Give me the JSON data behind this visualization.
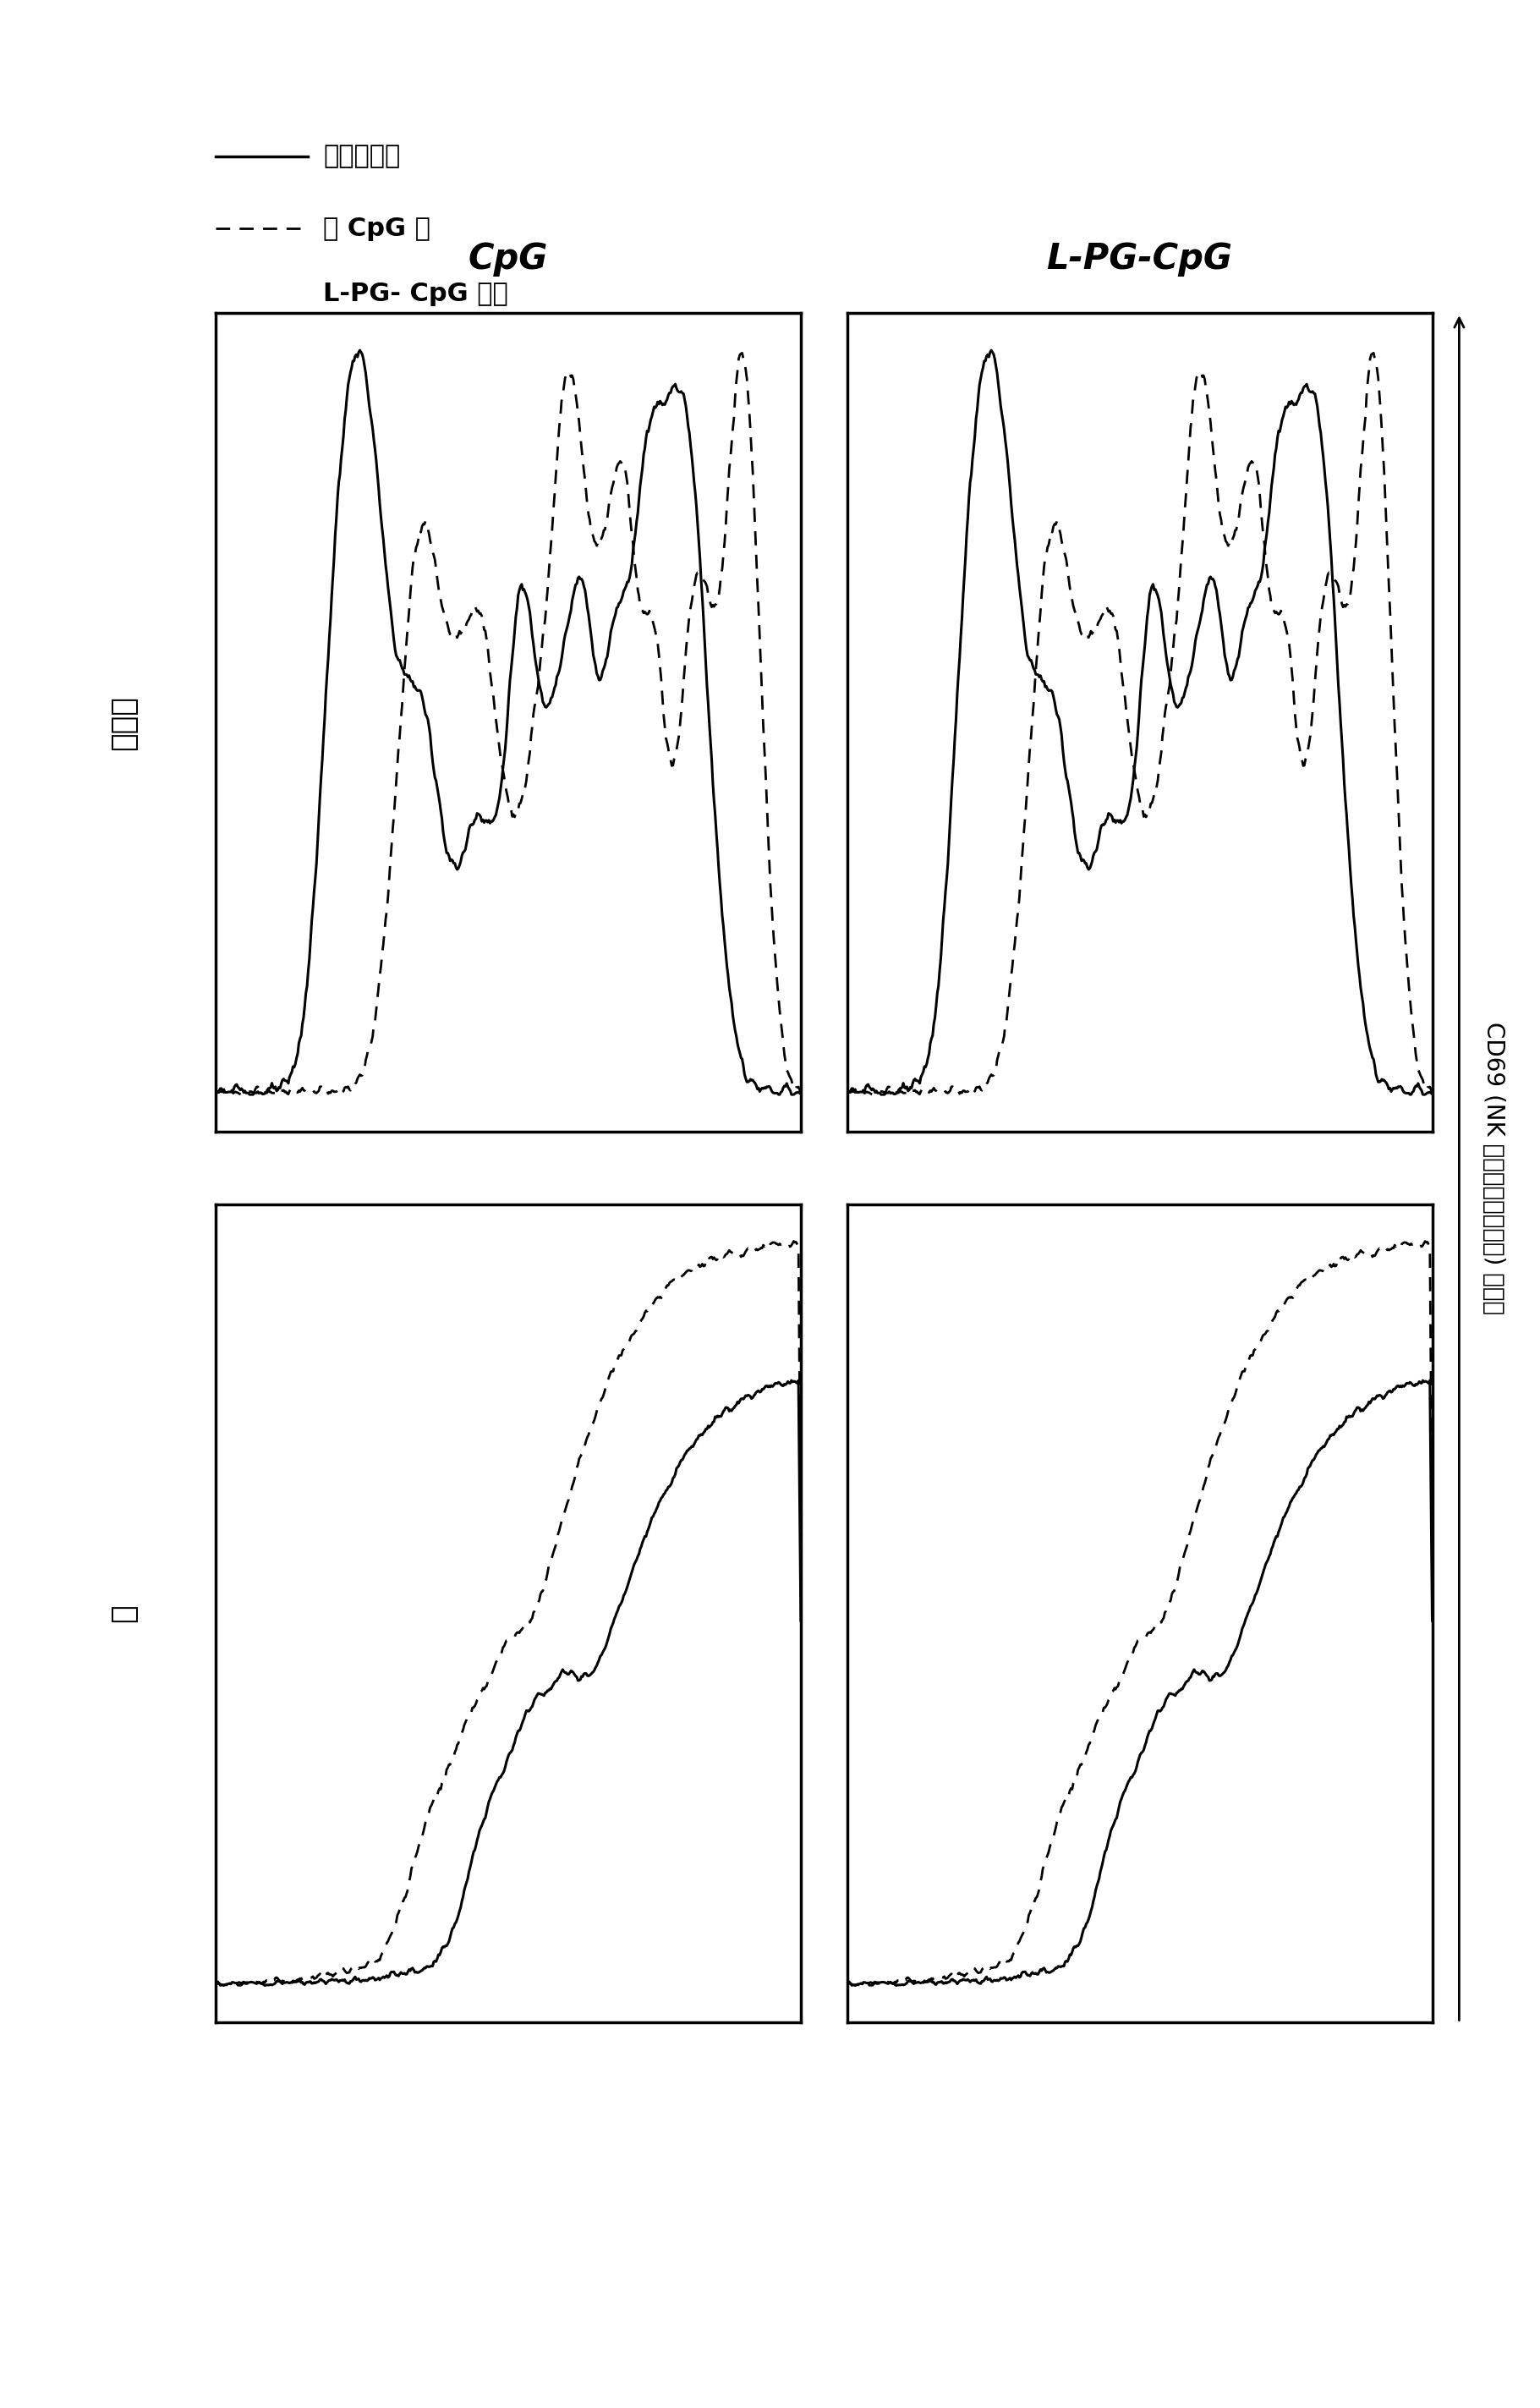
{
  "background_color": "#ffffff",
  "legend_label_1": "无处理对照",
  "legend_label_2": "用 CpG 或",
  "legend_label_3": "L-PG- CpG 处理",
  "col_label_1": "CpG",
  "col_label_2": "L-PG-CpG",
  "row_label_1": "肿瘾内",
  "row_label_2": "脾",
  "xlabel": "CD69 (NK 细胞的激活标志物) 的表达"
}
